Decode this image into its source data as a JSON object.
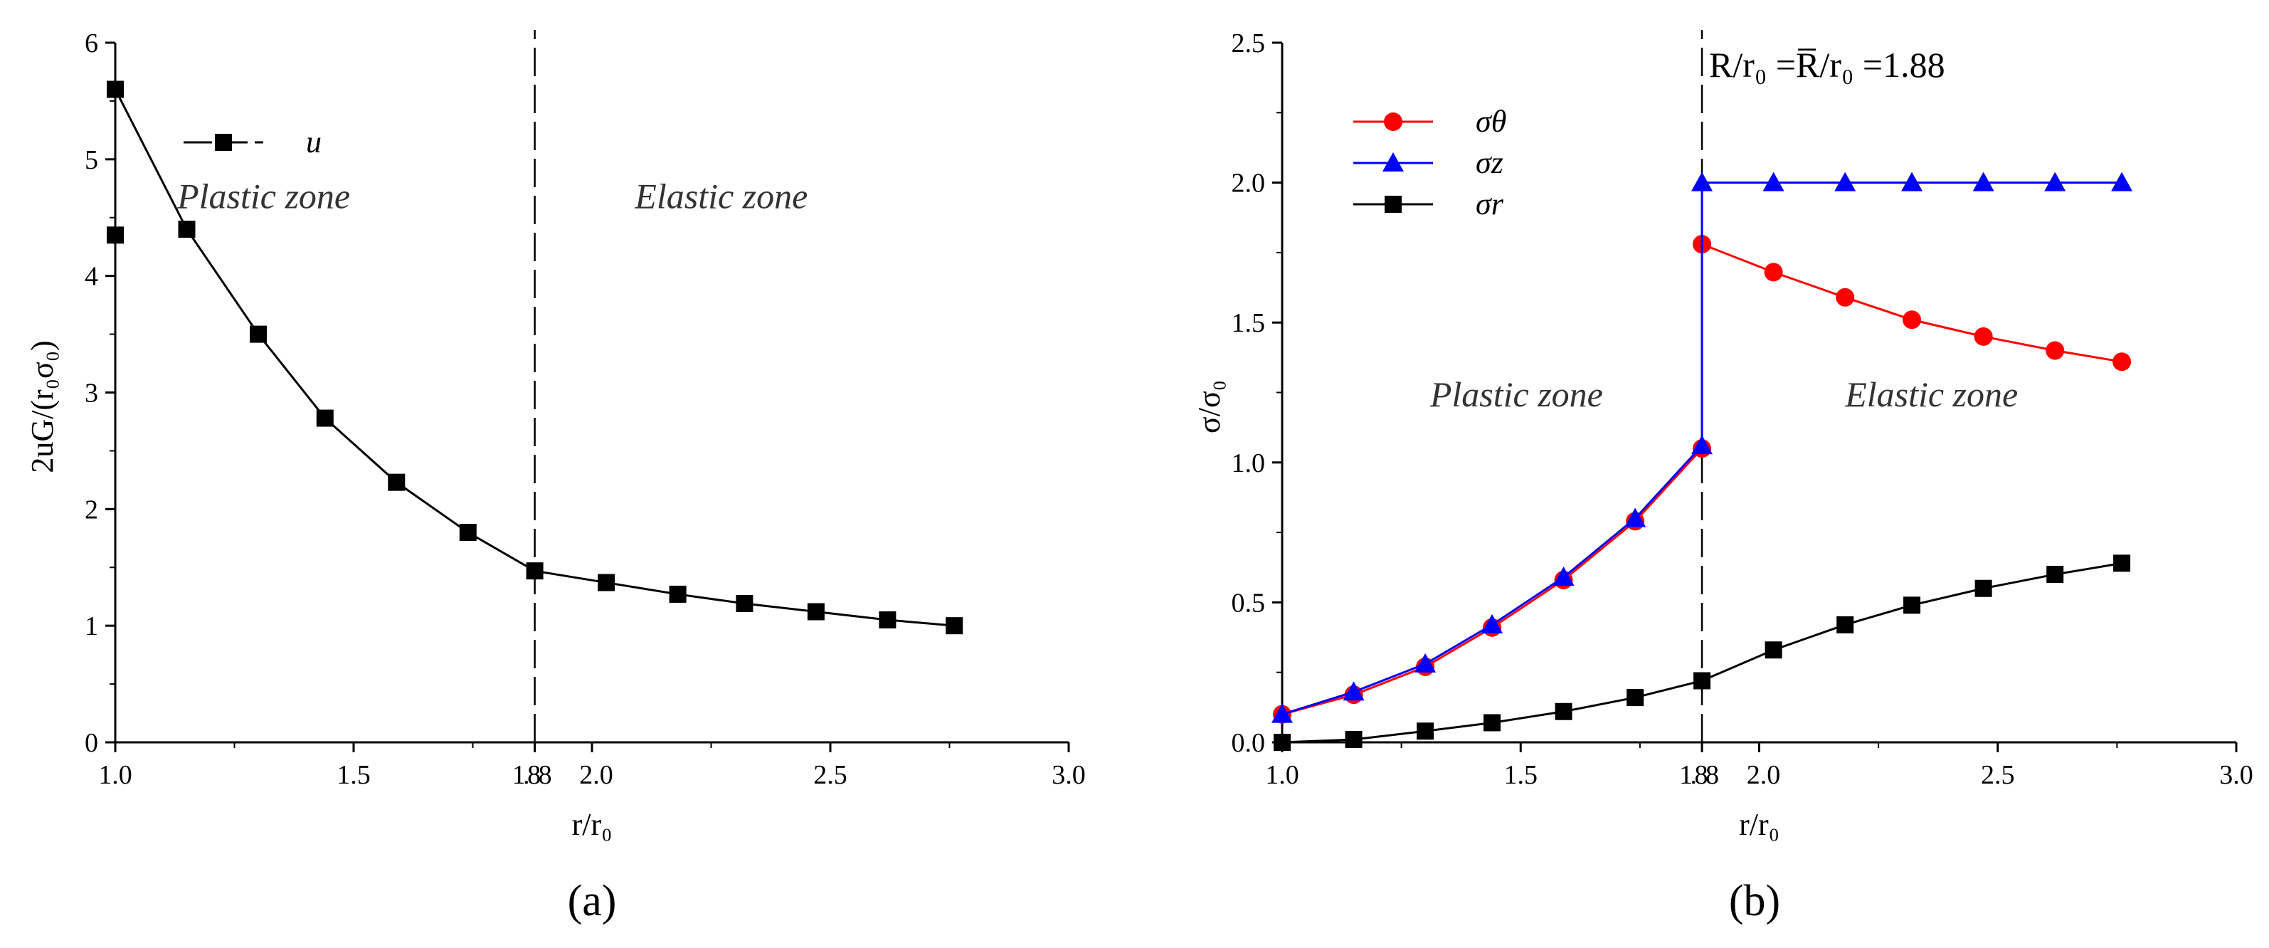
{
  "chart_data": [
    {
      "type": "line",
      "panel_label": "(a)",
      "xlabel": "r/r₀",
      "ylabel": "2uG/(r₀σ₀)",
      "xlim": [
        1.0,
        3.0
      ],
      "ylim": [
        0,
        6
      ],
      "xticks": [
        1.0,
        1.5,
        1.88,
        2.0,
        2.5,
        3.0
      ],
      "xtick_labels": [
        "1.0",
        "1.5",
        "1.88",
        "2.0",
        "2.5",
        "3.0"
      ],
      "yticks": [
        0,
        1,
        2,
        3,
        4,
        5,
        6
      ],
      "ytick_labels": [
        "0",
        "1",
        "2",
        "3",
        "4",
        "5",
        "6"
      ],
      "boundary_x": 1.88,
      "zone_labels": {
        "plastic": "Plastic zone",
        "elastic": "Elastic zone"
      },
      "series": [
        {
          "name": "u",
          "color": "#000000",
          "marker": "square",
          "x": [
            1.0,
            1.0,
            1.15,
            1.3,
            1.44,
            1.59,
            1.74,
            1.88,
            2.03,
            2.18,
            2.32,
            2.47,
            2.62,
            2.76
          ],
          "y": [
            4.35,
            5.6,
            4.4,
            3.5,
            2.78,
            2.23,
            1.8,
            1.47,
            1.37,
            1.27,
            1.19,
            1.12,
            1.05,
            1.0
          ]
        }
      ]
    },
    {
      "type": "line",
      "panel_label": "(b)",
      "xlabel": "r/r₀",
      "ylabel": "σ/σ₀",
      "xlim": [
        1.0,
        3.0
      ],
      "ylim": [
        0,
        2.5
      ],
      "xticks": [
        1.0,
        1.5,
        1.88,
        2.0,
        2.5,
        3.0
      ],
      "xtick_labels": [
        "1.0",
        "1.5",
        "1.88",
        "2.0",
        "2.5",
        "3.0"
      ],
      "yticks": [
        0,
        0.5,
        1.0,
        1.5,
        2.0,
        2.5
      ],
      "ytick_labels": [
        "0.0",
        "0.5",
        "1.0",
        "1.5",
        "2.0",
        "2.5"
      ],
      "boundary_x": 1.88,
      "annotation": "R/r₀ =R̅/r₀ =1.88",
      "zone_labels": {
        "plastic": "Plastic zone",
        "elastic": "Elastic zone"
      },
      "series": [
        {
          "name": "σθ",
          "color": "#ff0000",
          "marker": "circle",
          "x": [
            1.0,
            1.15,
            1.3,
            1.44,
            1.59,
            1.74,
            1.88,
            1.88,
            2.03,
            2.18,
            2.32,
            2.47,
            2.62,
            2.76
          ],
          "y": [
            0.1,
            0.17,
            0.27,
            0.41,
            0.58,
            0.79,
            1.05,
            1.78,
            1.68,
            1.59,
            1.51,
            1.45,
            1.4,
            1.36
          ]
        },
        {
          "name": "σz",
          "color": "#0000ff",
          "marker": "triangle",
          "x": [
            1.0,
            1.15,
            1.3,
            1.44,
            1.59,
            1.74,
            1.88,
            1.88,
            2.03,
            2.18,
            2.32,
            2.47,
            2.62,
            2.76
          ],
          "y": [
            0.1,
            0.18,
            0.28,
            0.42,
            0.59,
            0.8,
            1.06,
            2.0,
            2.0,
            2.0,
            2.0,
            2.0,
            2.0,
            2.0
          ]
        },
        {
          "name": "σr",
          "color": "#000000",
          "marker": "square",
          "x": [
            1.0,
            1.15,
            1.3,
            1.44,
            1.59,
            1.74,
            1.88,
            2.03,
            2.18,
            2.32,
            2.47,
            2.62,
            2.76
          ],
          "y": [
            0.0,
            0.01,
            0.04,
            0.07,
            0.11,
            0.16,
            0.22,
            0.33,
            0.42,
            0.49,
            0.55,
            0.6,
            0.64
          ]
        }
      ]
    }
  ]
}
